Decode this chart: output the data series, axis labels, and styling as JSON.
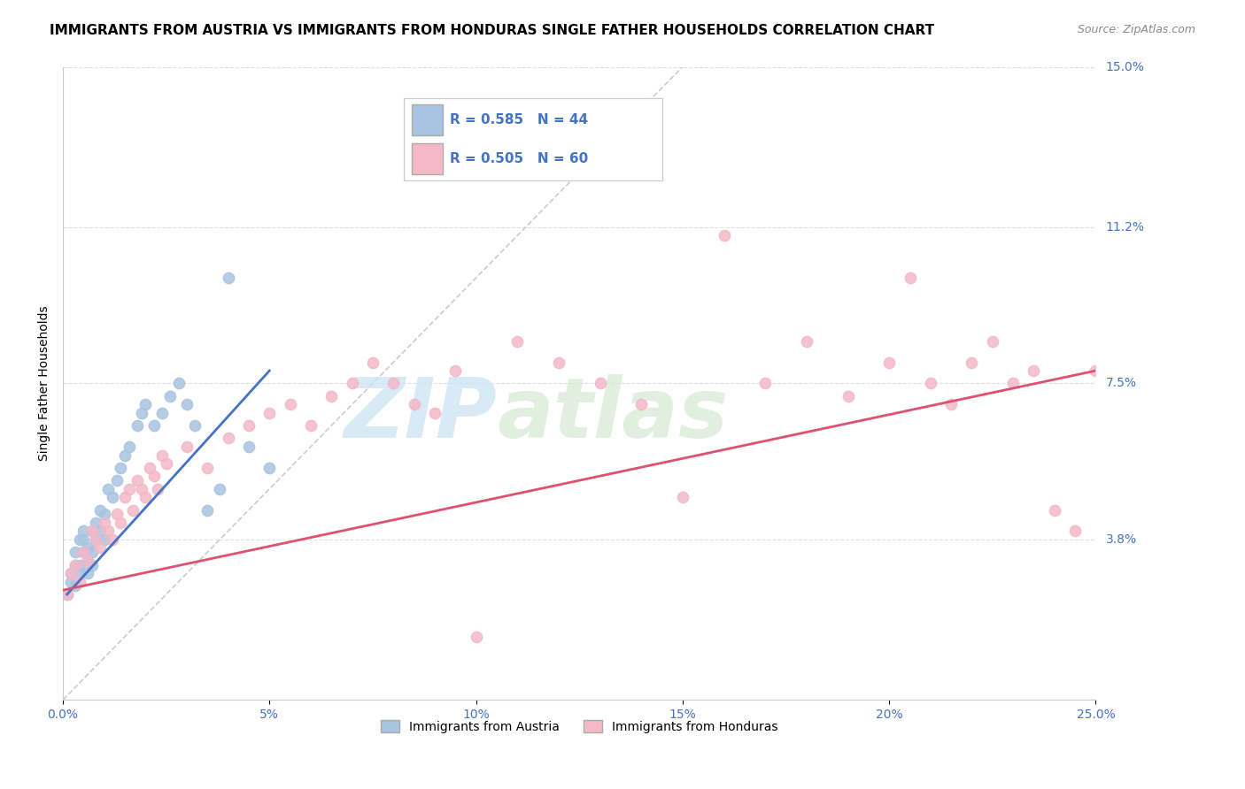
{
  "title": "IMMIGRANTS FROM AUSTRIA VS IMMIGRANTS FROM HONDURAS SINGLE FATHER HOUSEHOLDS CORRELATION CHART",
  "source": "Source: ZipAtlas.com",
  "ylabel": "Single Father Households",
  "xlim": [
    0,
    0.25
  ],
  "ylim": [
    0,
    0.15
  ],
  "xticks": [
    0.0,
    0.05,
    0.1,
    0.15,
    0.2,
    0.25
  ],
  "xtick_labels": [
    "0.0%",
    "5%",
    "10%",
    "15%",
    "20%",
    "25.0%"
  ],
  "yticks_right": [
    0.0,
    0.038,
    0.075,
    0.112,
    0.15
  ],
  "ytick_labels_right": [
    "",
    "3.8%",
    "7.5%",
    "11.2%",
    "15.0%"
  ],
  "series": [
    {
      "name": "Immigrants from Austria",
      "R": 0.585,
      "N": 44,
      "color": "#a8c4e0",
      "line_color": "#4472c4",
      "x": [
        0.001,
        0.002,
        0.002,
        0.003,
        0.003,
        0.003,
        0.004,
        0.004,
        0.004,
        0.005,
        0.005,
        0.005,
        0.006,
        0.006,
        0.006,
        0.007,
        0.007,
        0.007,
        0.008,
        0.008,
        0.009,
        0.009,
        0.01,
        0.01,
        0.011,
        0.012,
        0.013,
        0.014,
        0.015,
        0.016,
        0.018,
        0.019,
        0.02,
        0.022,
        0.024,
        0.026,
        0.028,
        0.03,
        0.032,
        0.035,
        0.038,
        0.04,
        0.045,
        0.05
      ],
      "y": [
        0.025,
        0.03,
        0.028,
        0.032,
        0.027,
        0.035,
        0.038,
        0.032,
        0.03,
        0.04,
        0.035,
        0.038,
        0.03,
        0.033,
        0.036,
        0.032,
        0.035,
        0.04,
        0.038,
        0.042,
        0.04,
        0.045,
        0.038,
        0.044,
        0.05,
        0.048,
        0.052,
        0.055,
        0.058,
        0.06,
        0.065,
        0.068,
        0.07,
        0.065,
        0.068,
        0.072,
        0.075,
        0.07,
        0.065,
        0.045,
        0.05,
        0.1,
        0.06,
        0.055
      ],
      "trend_x": [
        0.001,
        0.05
      ],
      "trend_y": [
        0.025,
        0.078
      ]
    },
    {
      "name": "Immigrants from Honduras",
      "R": 0.505,
      "N": 60,
      "color": "#f4b8c8",
      "line_color": "#e05070",
      "x": [
        0.001,
        0.002,
        0.003,
        0.004,
        0.005,
        0.006,
        0.007,
        0.008,
        0.009,
        0.01,
        0.011,
        0.012,
        0.013,
        0.014,
        0.015,
        0.016,
        0.017,
        0.018,
        0.019,
        0.02,
        0.021,
        0.022,
        0.023,
        0.024,
        0.025,
        0.03,
        0.035,
        0.04,
        0.045,
        0.05,
        0.055,
        0.06,
        0.065,
        0.07,
        0.075,
        0.08,
        0.085,
        0.09,
        0.095,
        0.1,
        0.11,
        0.12,
        0.13,
        0.14,
        0.15,
        0.16,
        0.17,
        0.18,
        0.19,
        0.2,
        0.205,
        0.21,
        0.215,
        0.22,
        0.225,
        0.23,
        0.235,
        0.24,
        0.245,
        0.25
      ],
      "y": [
        0.025,
        0.03,
        0.032,
        0.028,
        0.035,
        0.033,
        0.04,
        0.038,
        0.036,
        0.042,
        0.04,
        0.038,
        0.044,
        0.042,
        0.048,
        0.05,
        0.045,
        0.052,
        0.05,
        0.048,
        0.055,
        0.053,
        0.05,
        0.058,
        0.056,
        0.06,
        0.055,
        0.062,
        0.065,
        0.068,
        0.07,
        0.065,
        0.072,
        0.075,
        0.08,
        0.075,
        0.07,
        0.068,
        0.078,
        0.015,
        0.085,
        0.08,
        0.075,
        0.07,
        0.048,
        0.11,
        0.075,
        0.085,
        0.072,
        0.08,
        0.1,
        0.075,
        0.07,
        0.08,
        0.085,
        0.075,
        0.078,
        0.045,
        0.04,
        0.078
      ],
      "trend_x": [
        0.0,
        0.25
      ],
      "trend_y": [
        0.026,
        0.078
      ]
    }
  ],
  "diagonal_line": {
    "x": [
      0.0,
      0.15
    ],
    "y": [
      0.0,
      0.15
    ],
    "color": "#cccccc",
    "style": "--"
  },
  "watermark_zip": "ZIP",
  "watermark_atlas": "atlas",
  "background_color": "#ffffff",
  "grid_color": "#e0e0e0",
  "title_fontsize": 11,
  "tick_label_color": "#4472c4"
}
